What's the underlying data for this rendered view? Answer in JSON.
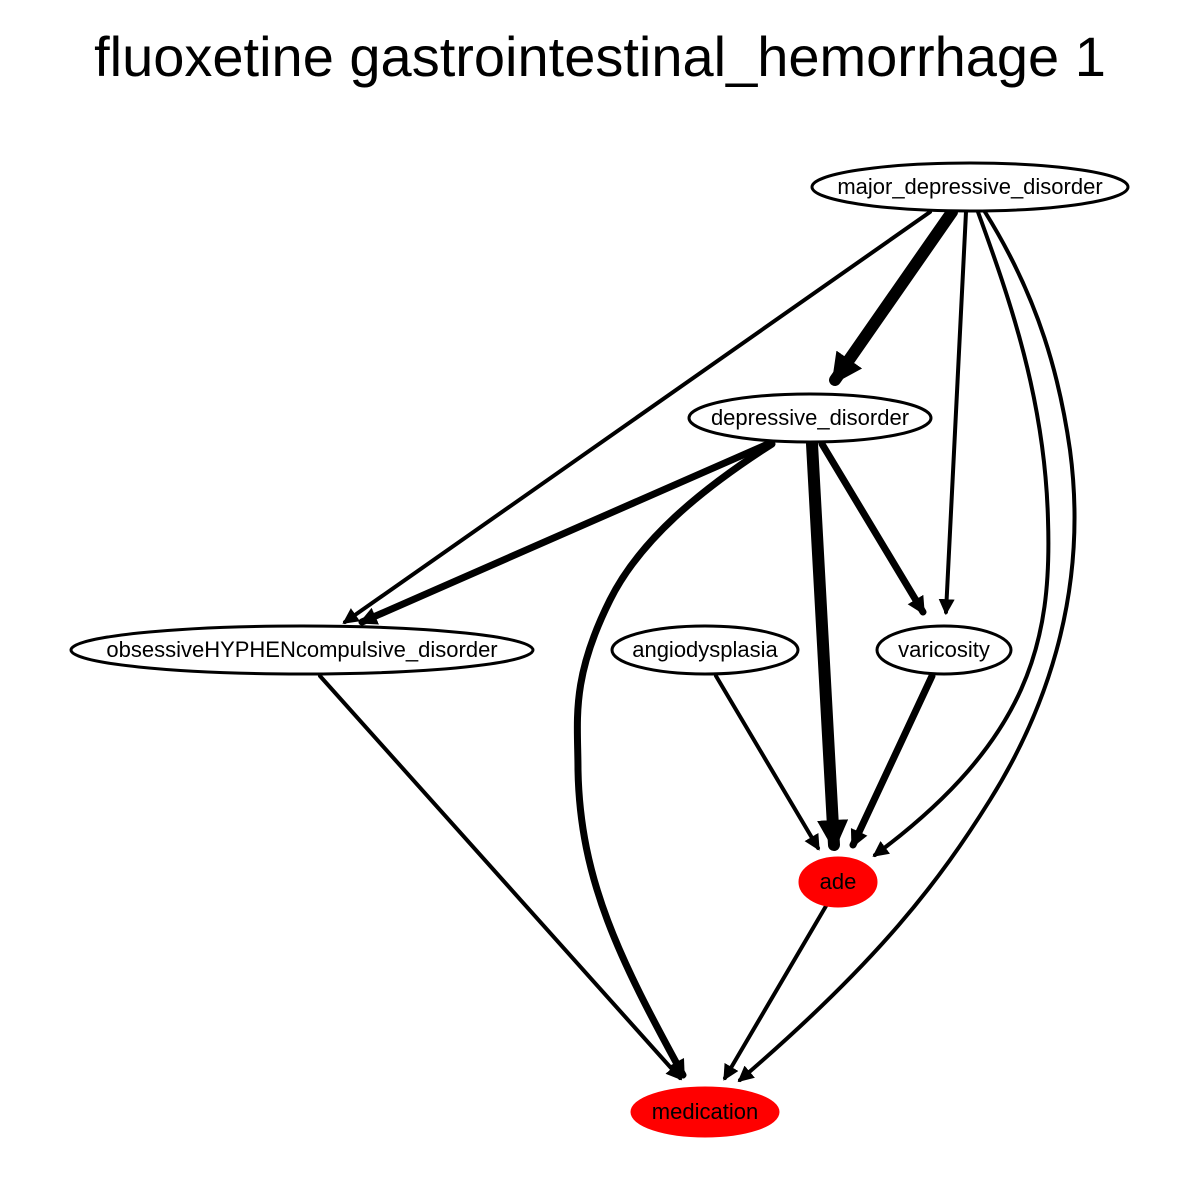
{
  "title": "fluoxetine gastrointestinal_hemorrhage 1",
  "nodes": [
    {
      "id": "mdd",
      "label": "major_depressive_disorder",
      "fill": "#ffffff"
    },
    {
      "id": "dd",
      "label": "depressive_disorder",
      "fill": "#ffffff"
    },
    {
      "id": "ocd",
      "label": "obsessiveHYPHENcompulsive_disorder",
      "fill": "#ffffff"
    },
    {
      "id": "angio",
      "label": "angiodysplasia",
      "fill": "#ffffff"
    },
    {
      "id": "varic",
      "label": "varicosity",
      "fill": "#ffffff"
    },
    {
      "id": "ade",
      "label": "ade",
      "fill": "#ff0000"
    },
    {
      "id": "med",
      "label": "medication",
      "fill": "#ff0000"
    }
  ],
  "edges": [
    {
      "from": "mdd",
      "to": "dd",
      "weight": "heavy"
    },
    {
      "from": "mdd",
      "to": "ocd",
      "weight": "normal"
    },
    {
      "from": "mdd",
      "to": "varic",
      "weight": "normal"
    },
    {
      "from": "mdd",
      "to": "ade",
      "weight": "normal"
    },
    {
      "from": "mdd",
      "to": "med",
      "weight": "normal"
    },
    {
      "from": "dd",
      "to": "ocd",
      "weight": "medium"
    },
    {
      "from": "dd",
      "to": "ade",
      "weight": "heavy"
    },
    {
      "from": "dd",
      "to": "varic",
      "weight": "medium"
    },
    {
      "from": "dd",
      "to": "med",
      "weight": "medium"
    },
    {
      "from": "ocd",
      "to": "med",
      "weight": "normal"
    },
    {
      "from": "angio",
      "to": "ade",
      "weight": "normal"
    },
    {
      "from": "varic",
      "to": "ade",
      "weight": "medium"
    },
    {
      "from": "ade",
      "to": "med",
      "weight": "normal"
    }
  ]
}
